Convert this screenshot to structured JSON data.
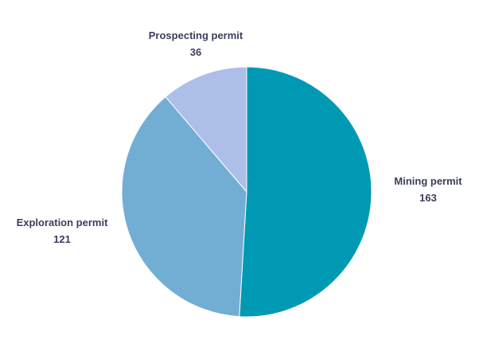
{
  "chart_data": {
    "type": "pie",
    "slices": [
      {
        "label": "Mining permit",
        "value": 163,
        "color": "#0099b4"
      },
      {
        "label": "Exploration permit",
        "value": 121,
        "color": "#72aed4"
      },
      {
        "label": "Prospecting permit",
        "value": 36,
        "color": "#adbfe8"
      }
    ],
    "start": "12 o'clock",
    "direction": "clockwise",
    "data_labels": "outside, name above value",
    "legend": "none"
  }
}
